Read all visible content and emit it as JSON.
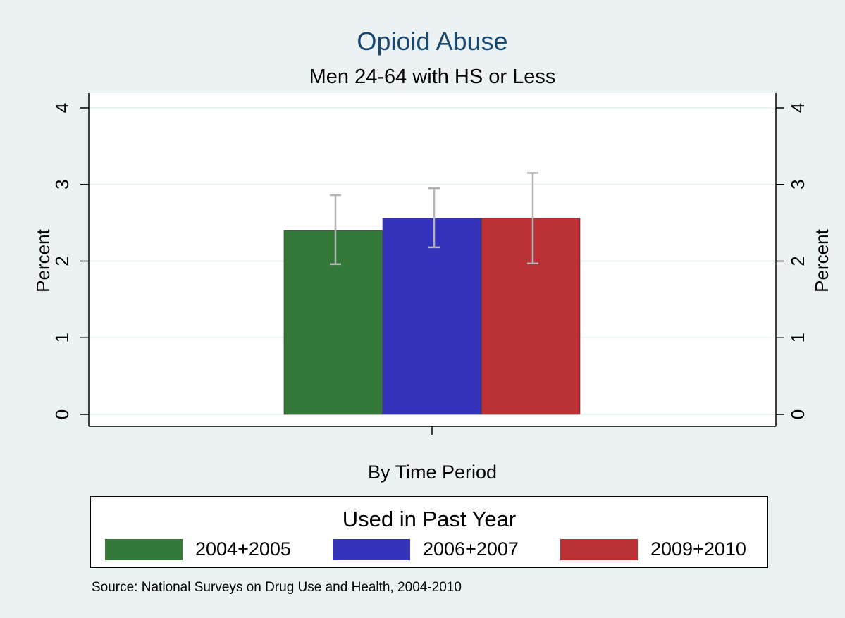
{
  "chart_data": {
    "type": "bar",
    "title": "Opioid Abuse",
    "subtitle": "Men 24-64 with HS or Less",
    "xlabel": "By Time Period",
    "ylabel": "Percent",
    "ylim": [
      0,
      4
    ],
    "yticks": [
      "0",
      "1",
      "2",
      "3",
      "4"
    ],
    "grid": true,
    "legend_title": "Used in Past Year",
    "legend_position": "bottom",
    "series": [
      {
        "name": "2004+2005",
        "value": 2.4,
        "ci_low": 1.96,
        "ci_high": 2.86,
        "color": "#35793a"
      },
      {
        "name": "2006+2007",
        "value": 2.56,
        "ci_low": 2.18,
        "ci_high": 2.95,
        "color": "#3333bb"
      },
      {
        "name": "2009+2010",
        "value": 2.56,
        "ci_low": 1.97,
        "ci_high": 3.15,
        "color": "#bb3035"
      }
    ],
    "errorbar_color": "#b4b4b4",
    "note": "Source:  National Surveys on Drug Use and Health, 2004-2010"
  }
}
